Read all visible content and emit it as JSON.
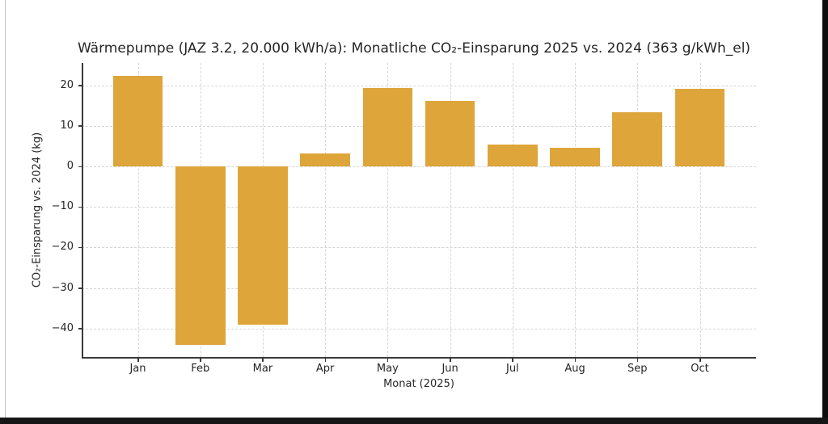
{
  "window": {
    "background": "#ffffff",
    "left_border_color": "#c4c4c4",
    "edge_color": "#0e0e0e"
  },
  "chart_data": {
    "type": "bar",
    "title": "Wärmepumpe (JAZ 3.2, 20.000 kWh/a): Monatliche CO₂-Einsparung 2025 vs. 2024 (363 g/kWh_el)",
    "xlabel": "Monat (2025)",
    "ylabel": "CO₂-Einsparung vs. 2024 (kg)",
    "categories": [
      "Jan",
      "Feb",
      "Mar",
      "Apr",
      "May",
      "Jun",
      "Jul",
      "Aug",
      "Sep",
      "Oct"
    ],
    "values": [
      22.4,
      -44.1,
      -39.1,
      3.1,
      19.4,
      16.1,
      5.4,
      4.6,
      13.4,
      19.2
    ],
    "yticks": [
      20,
      10,
      0,
      -10,
      -20,
      -30,
      -40
    ],
    "ytick_labels": [
      "20",
      "10",
      "0",
      "−10",
      "−20",
      "−30",
      "−40"
    ],
    "ylim": [
      -47.0,
      25.5
    ],
    "xlim": [
      -0.9,
      9.9
    ],
    "bar_width_units": 0.8,
    "bar_color": "#DEA53A",
    "grid": true,
    "grid_color": "#d6d6d6",
    "axis_color": "#3a3a3a",
    "text_color": "#262626",
    "legend": null
  }
}
